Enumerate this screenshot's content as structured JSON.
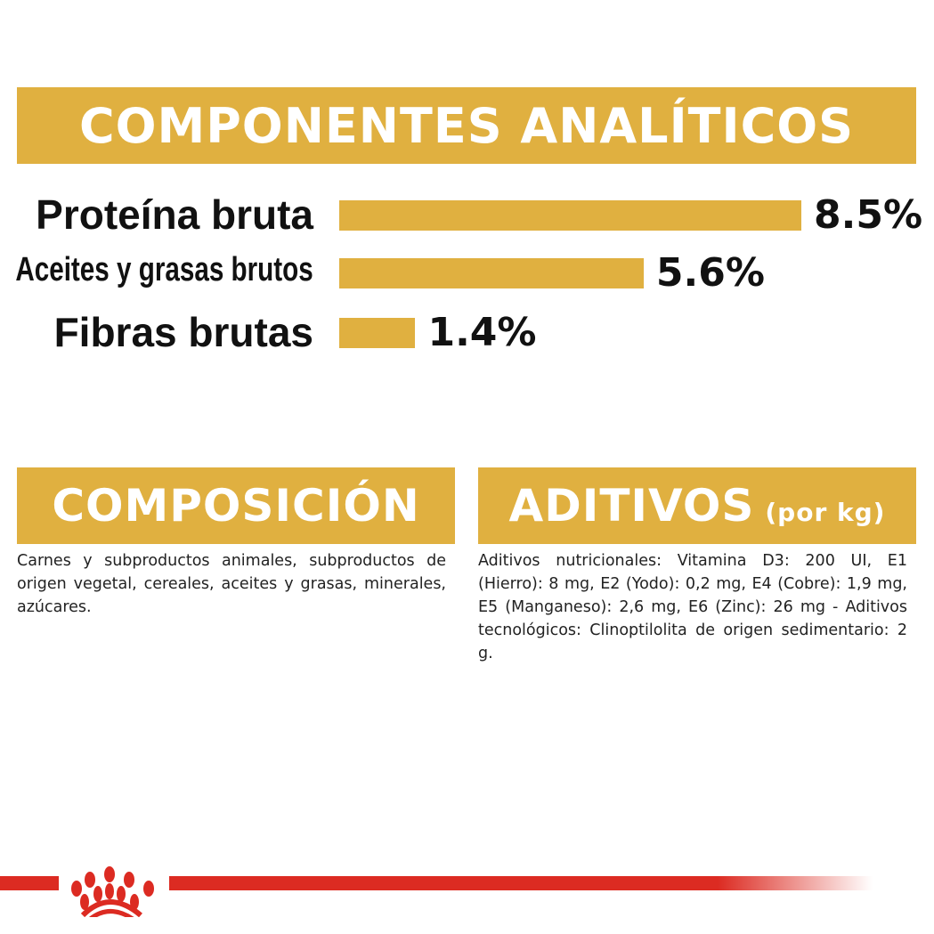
{
  "header": {
    "title": "COMPONENTES ANALÍTICOS"
  },
  "analytics": [
    {
      "label": "Proteína bruta",
      "value": 8.5,
      "display": "8.5%"
    },
    {
      "label": "Aceites y grasas brutos",
      "value": 5.6,
      "display": "5.6%"
    },
    {
      "label": "Fibras brutas",
      "value": 1.4,
      "display": "1.4%"
    }
  ],
  "composition": {
    "title": "COMPOSICIÓN",
    "text": "Carnes y subproductos animales, subproductos de origen vegetal, cereales, aceites y grasas, minerales, azúcares."
  },
  "additives": {
    "title": "ADITIVOS",
    "unit": "(por kg)",
    "text": "Aditivos nutricionales: Vitamina D3: 200 UI, E1 (Hierro): 8 mg, E2 (Yodo): 0,2 mg, E4 (Cobre): 1,9 mg, E5 (Manganeso): 2,6 mg, E6 (Zinc): 26 mg - Aditivos tecnológicos: Clinoptilolita de origen sedimentario: 2 g."
  },
  "colors": {
    "accent": "#e0b040",
    "brand_red": "#dc2b22"
  },
  "logo": {
    "icon": "royal-canin-crown-logo"
  }
}
